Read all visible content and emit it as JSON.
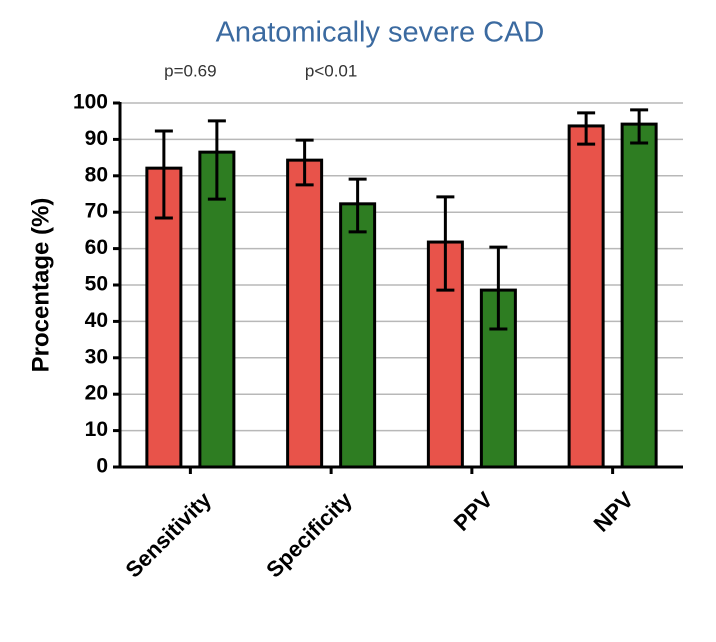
{
  "chart_data": {
    "type": "bar",
    "title": "Anatomically severe CAD",
    "ylabel": "Procentage (%)",
    "categories": [
      "Sensitivity",
      "Specificity",
      "PPV",
      "NPV"
    ],
    "annotations": [
      "p=0.69",
      "p<0.01",
      null,
      null
    ],
    "series": [
      {
        "color": "#e8534a",
        "values": [
          82.1,
          84.3,
          61.8,
          93.7
        ],
        "lower": [
          68.4,
          77.5,
          48.6,
          88.7
        ],
        "upper": [
          92.3,
          89.8,
          74.2,
          97.3
        ]
      },
      {
        "color": "#2e7d22",
        "values": [
          86.5,
          72.3,
          48.6,
          94.2
        ],
        "lower": [
          73.6,
          64.6,
          37.9,
          89.0
        ],
        "upper": [
          95.1,
          79.1,
          60.4,
          98.1
        ]
      }
    ],
    "ylim": [
      0,
      100
    ],
    "yticks": [
      0,
      10,
      20,
      30,
      40,
      50,
      60,
      70,
      80,
      90,
      100
    ],
    "grid": true
  }
}
